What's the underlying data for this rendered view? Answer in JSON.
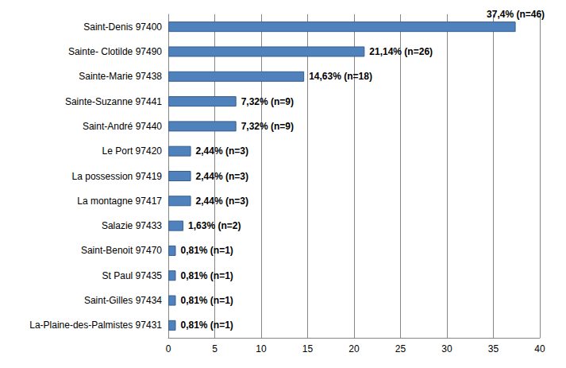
{
  "chart_data": {
    "type": "bar",
    "orientation": "horizontal",
    "categories": [
      "Saint-Denis 97400",
      "Sainte- Clotilde 97490",
      "Sainte-Marie 97438",
      "Sainte-Suzanne 97441",
      "Saint-André 97440",
      "Le Port 97420",
      "La possession 97419",
      "La montagne 97417",
      "Salazie 97433",
      "Saint-Benoit 97470",
      "St Paul 97435",
      "Saint-Gilles 97434",
      "La-Plaine-des-Palmistes 97431"
    ],
    "values": [
      37.4,
      21.14,
      14.63,
      7.32,
      7.32,
      2.44,
      2.44,
      2.44,
      1.63,
      0.81,
      0.81,
      0.81,
      0.81
    ],
    "value_labels": [
      "37,4% (n=46)",
      "21,14% (n=26)",
      "14,63% (n=18)",
      "7,32% (n=9)",
      "7,32% (n=9)",
      "2,44% (n=3)",
      "2,44% (n=3)",
      "2,44% (n=3)",
      "1,63% (n=2)",
      "0,81% (n=1)",
      "0,81% (n=1)",
      "0,81% (n=1)",
      "0,81% (n=1)"
    ],
    "color": "#4f81bd",
    "xlim": [
      0,
      40
    ],
    "xticks": [
      0,
      5,
      10,
      15,
      20,
      25,
      30,
      35,
      40
    ],
    "grid": true,
    "data_labels": true
  }
}
